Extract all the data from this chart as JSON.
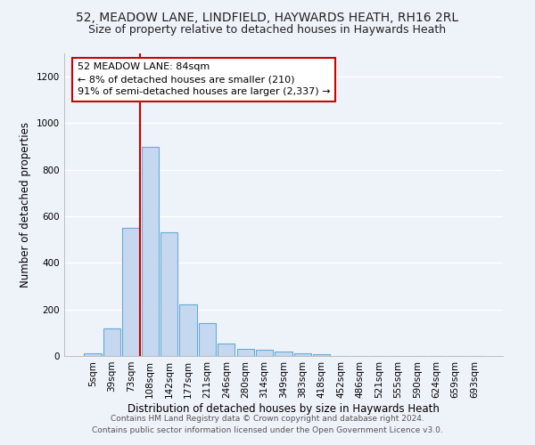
{
  "title1": "52, MEADOW LANE, LINDFIELD, HAYWARDS HEATH, RH16 2RL",
  "title2": "Size of property relative to detached houses in Haywards Heath",
  "xlabel": "Distribution of detached houses by size in Haywards Heath",
  "ylabel": "Number of detached properties",
  "categories": [
    "5sqm",
    "39sqm",
    "73sqm",
    "108sqm",
    "142sqm",
    "177sqm",
    "211sqm",
    "246sqm",
    "280sqm",
    "314sqm",
    "349sqm",
    "383sqm",
    "418sqm",
    "452sqm",
    "486sqm",
    "521sqm",
    "555sqm",
    "590sqm",
    "624sqm",
    "659sqm",
    "693sqm"
  ],
  "bar_values": [
    10,
    120,
    550,
    900,
    530,
    220,
    140,
    55,
    32,
    28,
    18,
    10,
    8,
    0,
    0,
    0,
    0,
    0,
    0,
    0,
    0
  ],
  "bar_color": "#c5d8f0",
  "bar_edge_color": "#6aaad4",
  "ylim": [
    0,
    1300
  ],
  "yticks": [
    0,
    200,
    400,
    600,
    800,
    1000,
    1200
  ],
  "vline_x": 2.5,
  "vline_color": "#cc0000",
  "annotation_text": "52 MEADOW LANE: 84sqm\n← 8% of detached houses are smaller (210)\n91% of semi-detached houses are larger (2,337) →",
  "annotation_box_color": "#ffffff",
  "annotation_box_edge_color": "#cc0000",
  "footer_text": "Contains HM Land Registry data © Crown copyright and database right 2024.\nContains public sector information licensed under the Open Government Licence v3.0.",
  "bg_color": "#eef2f9",
  "grid_color": "#ffffff",
  "title1_fontsize": 10,
  "title2_fontsize": 9,
  "xlabel_fontsize": 8.5,
  "ylabel_fontsize": 8.5,
  "tick_fontsize": 7.5,
  "annotation_fontsize": 8,
  "footer_fontsize": 6.5
}
